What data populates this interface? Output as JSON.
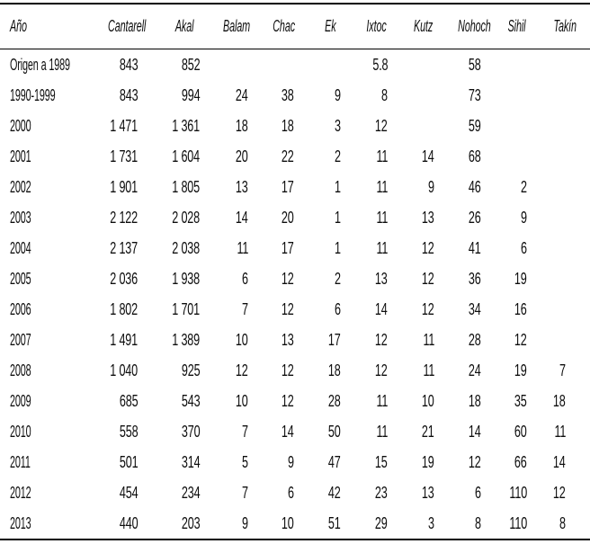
{
  "table": {
    "columns": [
      "Año",
      "Cantarell",
      "Akal",
      "Balam",
      "Chac",
      "Ek",
      "Ixtoc",
      "Kutz",
      "Nohoch",
      "Sihil",
      "Takín"
    ],
    "rows": [
      {
        "label": "Origen a 1989",
        "values": [
          "843",
          "852",
          "",
          "",
          "",
          "5.8",
          "",
          "58",
          "",
          ""
        ]
      },
      {
        "label": "1990-1999",
        "values": [
          "843",
          "994",
          "24",
          "38",
          "9",
          "8",
          "",
          "73",
          "",
          ""
        ]
      },
      {
        "label": "2000",
        "values": [
          "1 471",
          "1 361",
          "18",
          "18",
          "3",
          "12",
          "",
          "59",
          "",
          ""
        ]
      },
      {
        "label": "2001",
        "values": [
          "1 731",
          "1 604",
          "20",
          "22",
          "2",
          "11",
          "14",
          "68",
          "",
          ""
        ]
      },
      {
        "label": "2002",
        "values": [
          "1 901",
          "1 805",
          "13",
          "17",
          "1",
          "11",
          "9",
          "46",
          "2",
          ""
        ]
      },
      {
        "label": "2003",
        "values": [
          "2 122",
          "2 028",
          "14",
          "20",
          "1",
          "11",
          "13",
          "26",
          "9",
          ""
        ]
      },
      {
        "label": "2004",
        "values": [
          "2 137",
          "2 038",
          "11",
          "17",
          "1",
          "11",
          "12",
          "41",
          "6",
          ""
        ]
      },
      {
        "label": "2005",
        "values": [
          "2 036",
          "1 938",
          "6",
          "12",
          "2",
          "13",
          "12",
          "36",
          "19",
          ""
        ]
      },
      {
        "label": "2006",
        "values": [
          "1 802",
          "1 701",
          "7",
          "12",
          "6",
          "14",
          "12",
          "34",
          "16",
          ""
        ]
      },
      {
        "label": "2007",
        "values": [
          "1 491",
          "1 389",
          "10",
          "13",
          "17",
          "12",
          "11",
          "28",
          "12",
          ""
        ]
      },
      {
        "label": "2008",
        "values": [
          "1 040",
          "925",
          "12",
          "12",
          "18",
          "12",
          "11",
          "24",
          "19",
          "7"
        ]
      },
      {
        "label": "2009",
        "values": [
          "685",
          "543",
          "10",
          "12",
          "28",
          "11",
          "10",
          "18",
          "35",
          "18"
        ]
      },
      {
        "label": "2010",
        "values": [
          "558",
          "370",
          "7",
          "14",
          "50",
          "11",
          "21",
          "14",
          "60",
          "11"
        ]
      },
      {
        "label": "2011",
        "values": [
          "501",
          "314",
          "5",
          "9",
          "47",
          "15",
          "19",
          "12",
          "66",
          "14"
        ]
      },
      {
        "label": "2012",
        "values": [
          "454",
          "234",
          "7",
          "6",
          "42",
          "23",
          "13",
          "6",
          "110",
          "12"
        ]
      },
      {
        "label": "2013",
        "values": [
          "440",
          "203",
          "9",
          "10",
          "51",
          "29",
          "3",
          "8",
          "110",
          "8"
        ]
      }
    ],
    "colors": {
      "text": "#0d0d0d",
      "rule": "#000000",
      "background": "#ffffff"
    }
  }
}
